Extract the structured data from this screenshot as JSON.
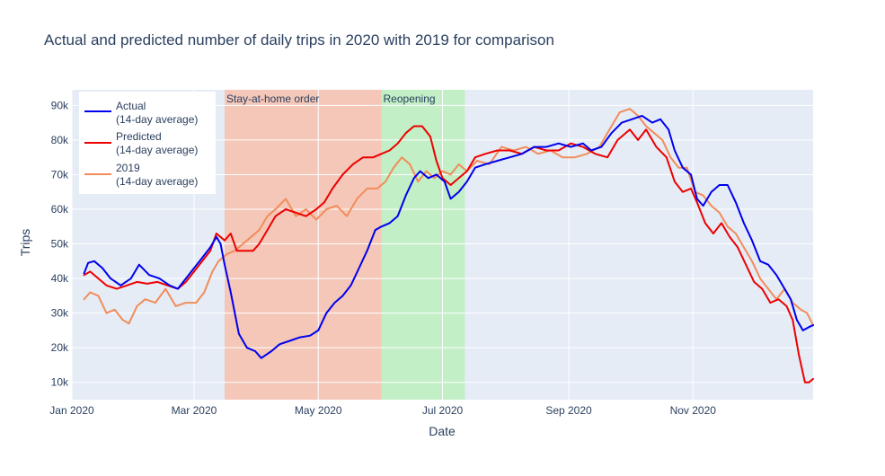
{
  "chart_data": {
    "type": "line",
    "title": "Actual and predicted number of daily trips in 2020 with 2019 for comparison",
    "xlabel": "Date",
    "ylabel": "Trips",
    "x_ticks": [
      "Jan 2020",
      "Mar 2020",
      "May 2020",
      "Jul 2020",
      "Sep 2020",
      "Nov 2020"
    ],
    "x_tick_dates": [
      "2020-01-01",
      "2020-03-01",
      "2020-05-01",
      "2020-07-01",
      "2020-09-01",
      "2020-11-01"
    ],
    "x_range": [
      "2020-01-01",
      "2020-12-30"
    ],
    "y_ticks": [
      10000,
      20000,
      30000,
      40000,
      50000,
      60000,
      70000,
      80000,
      90000
    ],
    "y_tick_labels": [
      "10k",
      "20k",
      "30k",
      "40k",
      "50k",
      "60k",
      "70k",
      "80k",
      "90k"
    ],
    "ylim": [
      5000,
      94500
    ],
    "grid": true,
    "legend_position": "top-left",
    "bands": [
      {
        "label": "Stay-at-home order",
        "start": "2020-03-16",
        "end": "2020-06-01",
        "color": "#f4c7b8"
      },
      {
        "label": "Reopening",
        "start": "2020-06-01",
        "end": "2020-07-12",
        "color": "#c2efc6"
      }
    ],
    "series": [
      {
        "name": "Actual",
        "name_line2": "(14-day average)",
        "color": "#0000ee",
        "points": [
          [
            "2020-01-07",
            41500
          ],
          [
            "2020-01-09",
            44500
          ],
          [
            "2020-01-12",
            45000
          ],
          [
            "2020-01-16",
            43000
          ],
          [
            "2020-01-20",
            40000
          ],
          [
            "2020-01-25",
            38000
          ],
          [
            "2020-01-30",
            40000
          ],
          [
            "2020-02-03",
            44000
          ],
          [
            "2020-02-08",
            41000
          ],
          [
            "2020-02-13",
            40000
          ],
          [
            "2020-02-18",
            38000
          ],
          [
            "2020-02-22",
            37000
          ],
          [
            "2020-02-26",
            40000
          ],
          [
            "2020-03-01",
            43000
          ],
          [
            "2020-03-05",
            46000
          ],
          [
            "2020-03-09",
            49000
          ],
          [
            "2020-03-12",
            52000
          ],
          [
            "2020-03-14",
            50000
          ],
          [
            "2020-03-16",
            44000
          ],
          [
            "2020-03-19",
            36000
          ],
          [
            "2020-03-23",
            24000
          ],
          [
            "2020-03-27",
            20000
          ],
          [
            "2020-03-31",
            19000
          ],
          [
            "2020-04-03",
            17000
          ],
          [
            "2020-04-08",
            19000
          ],
          [
            "2020-04-12",
            21000
          ],
          [
            "2020-04-17",
            22000
          ],
          [
            "2020-04-22",
            23000
          ],
          [
            "2020-04-27",
            23500
          ],
          [
            "2020-05-01",
            25000
          ],
          [
            "2020-05-05",
            30000
          ],
          [
            "2020-05-09",
            33000
          ],
          [
            "2020-05-13",
            35000
          ],
          [
            "2020-05-17",
            38000
          ],
          [
            "2020-05-21",
            43000
          ],
          [
            "2020-05-25",
            48000
          ],
          [
            "2020-05-29",
            54000
          ],
          [
            "2020-06-01",
            55000
          ],
          [
            "2020-06-05",
            56000
          ],
          [
            "2020-06-09",
            58000
          ],
          [
            "2020-06-13",
            64000
          ],
          [
            "2020-06-17",
            69000
          ],
          [
            "2020-06-20",
            71000
          ],
          [
            "2020-06-24",
            69000
          ],
          [
            "2020-06-28",
            70000
          ],
          [
            "2020-07-02",
            68000
          ],
          [
            "2020-07-05",
            63000
          ],
          [
            "2020-07-09",
            65000
          ],
          [
            "2020-07-13",
            68000
          ],
          [
            "2020-07-17",
            72000
          ],
          [
            "2020-07-22",
            73000
          ],
          [
            "2020-07-28",
            74000
          ],
          [
            "2020-08-03",
            75000
          ],
          [
            "2020-08-09",
            76000
          ],
          [
            "2020-08-15",
            78000
          ],
          [
            "2020-08-21",
            78000
          ],
          [
            "2020-08-27",
            79000
          ],
          [
            "2020-09-02",
            78000
          ],
          [
            "2020-09-08",
            79000
          ],
          [
            "2020-09-12",
            77000
          ],
          [
            "2020-09-17",
            78000
          ],
          [
            "2020-09-22",
            82000
          ],
          [
            "2020-09-27",
            85000
          ],
          [
            "2020-10-02",
            86000
          ],
          [
            "2020-10-07",
            87000
          ],
          [
            "2020-10-12",
            85000
          ],
          [
            "2020-10-16",
            86000
          ],
          [
            "2020-10-20",
            83000
          ],
          [
            "2020-10-23",
            77000
          ],
          [
            "2020-10-27",
            72000
          ],
          [
            "2020-10-31",
            70000
          ],
          [
            "2020-11-03",
            63000
          ],
          [
            "2020-11-06",
            61000
          ],
          [
            "2020-11-10",
            65000
          ],
          [
            "2020-11-14",
            67000
          ],
          [
            "2020-11-18",
            67000
          ],
          [
            "2020-11-22",
            62000
          ],
          [
            "2020-11-26",
            56000
          ],
          [
            "2020-11-30",
            51000
          ],
          [
            "2020-12-04",
            45000
          ],
          [
            "2020-12-08",
            44000
          ],
          [
            "2020-12-12",
            41000
          ],
          [
            "2020-12-16",
            37000
          ],
          [
            "2020-12-19",
            34000
          ],
          [
            "2020-12-22",
            28000
          ],
          [
            "2020-12-25",
            25000
          ],
          [
            "2020-12-28",
            26000
          ],
          [
            "2020-12-30",
            26500
          ]
        ]
      },
      {
        "name": "Predicted",
        "name_line2": "(14-day average)",
        "color": "#ee0000",
        "points": [
          [
            "2020-01-07",
            41000
          ],
          [
            "2020-01-10",
            42000
          ],
          [
            "2020-01-14",
            40000
          ],
          [
            "2020-01-18",
            38000
          ],
          [
            "2020-01-23",
            37000
          ],
          [
            "2020-01-28",
            38000
          ],
          [
            "2020-02-02",
            39000
          ],
          [
            "2020-02-07",
            38500
          ],
          [
            "2020-02-12",
            39000
          ],
          [
            "2020-02-17",
            38000
          ],
          [
            "2020-02-22",
            37000
          ],
          [
            "2020-02-26",
            39000
          ],
          [
            "2020-03-01",
            42000
          ],
          [
            "2020-03-05",
            45000
          ],
          [
            "2020-03-09",
            48000
          ],
          [
            "2020-03-12",
            53000
          ],
          [
            "2020-03-16",
            51000
          ],
          [
            "2020-03-19",
            53000
          ],
          [
            "2020-03-22",
            48000
          ],
          [
            "2020-03-26",
            48000
          ],
          [
            "2020-03-30",
            48000
          ],
          [
            "2020-04-02",
            50000
          ],
          [
            "2020-04-06",
            54000
          ],
          [
            "2020-04-10",
            58000
          ],
          [
            "2020-04-15",
            60000
          ],
          [
            "2020-04-20",
            59000
          ],
          [
            "2020-04-25",
            58000
          ],
          [
            "2020-04-30",
            60000
          ],
          [
            "2020-05-04",
            62000
          ],
          [
            "2020-05-08",
            66000
          ],
          [
            "2020-05-13",
            70000
          ],
          [
            "2020-05-18",
            73000
          ],
          [
            "2020-05-23",
            75000
          ],
          [
            "2020-05-28",
            75000
          ],
          [
            "2020-06-01",
            76000
          ],
          [
            "2020-06-05",
            77000
          ],
          [
            "2020-06-09",
            79000
          ],
          [
            "2020-06-13",
            82000
          ],
          [
            "2020-06-17",
            84000
          ],
          [
            "2020-06-21",
            84000
          ],
          [
            "2020-06-25",
            81000
          ],
          [
            "2020-06-28",
            74000
          ],
          [
            "2020-07-01",
            69000
          ],
          [
            "2020-07-05",
            67000
          ],
          [
            "2020-07-09",
            69000
          ],
          [
            "2020-07-13",
            71000
          ],
          [
            "2020-07-17",
            75000
          ],
          [
            "2020-07-22",
            76000
          ],
          [
            "2020-07-28",
            77000
          ],
          [
            "2020-08-03",
            77000
          ],
          [
            "2020-08-09",
            76000
          ],
          [
            "2020-08-15",
            78000
          ],
          [
            "2020-08-21",
            77000
          ],
          [
            "2020-08-27",
            77000
          ],
          [
            "2020-09-02",
            79000
          ],
          [
            "2020-09-08",
            78000
          ],
          [
            "2020-09-14",
            76000
          ],
          [
            "2020-09-20",
            75000
          ],
          [
            "2020-09-25",
            80000
          ],
          [
            "2020-10-01",
            83000
          ],
          [
            "2020-10-05",
            80000
          ],
          [
            "2020-10-09",
            83000
          ],
          [
            "2020-10-14",
            78000
          ],
          [
            "2020-10-19",
            75000
          ],
          [
            "2020-10-23",
            68000
          ],
          [
            "2020-10-27",
            65000
          ],
          [
            "2020-10-31",
            66000
          ],
          [
            "2020-11-03",
            62000
          ],
          [
            "2020-11-07",
            56000
          ],
          [
            "2020-11-11",
            53000
          ],
          [
            "2020-11-15",
            56000
          ],
          [
            "2020-11-19",
            52000
          ],
          [
            "2020-11-23",
            49000
          ],
          [
            "2020-11-27",
            44000
          ],
          [
            "2020-12-01",
            39000
          ],
          [
            "2020-12-05",
            37000
          ],
          [
            "2020-12-09",
            33000
          ],
          [
            "2020-12-13",
            34000
          ],
          [
            "2020-12-17",
            32000
          ],
          [
            "2020-12-20",
            28000
          ],
          [
            "2020-12-23",
            18000
          ],
          [
            "2020-12-26",
            10000
          ],
          [
            "2020-12-28",
            10000
          ],
          [
            "2020-12-30",
            11000
          ]
        ]
      },
      {
        "name": "2019",
        "name_line2": "(14-day average)",
        "color": "#f28c5a",
        "points": [
          [
            "2020-01-07",
            34000
          ],
          [
            "2020-01-10",
            36000
          ],
          [
            "2020-01-14",
            35000
          ],
          [
            "2020-01-18",
            30000
          ],
          [
            "2020-01-22",
            31000
          ],
          [
            "2020-01-26",
            28000
          ],
          [
            "2020-01-29",
            27000
          ],
          [
            "2020-02-02",
            32000
          ],
          [
            "2020-02-06",
            34000
          ],
          [
            "2020-02-11",
            33000
          ],
          [
            "2020-02-16",
            37000
          ],
          [
            "2020-02-21",
            32000
          ],
          [
            "2020-02-26",
            33000
          ],
          [
            "2020-03-02",
            33000
          ],
          [
            "2020-03-06",
            36000
          ],
          [
            "2020-03-10",
            42000
          ],
          [
            "2020-03-13",
            45000
          ],
          [
            "2020-03-17",
            47000
          ],
          [
            "2020-03-21",
            48000
          ],
          [
            "2020-03-25",
            50000
          ],
          [
            "2020-03-29",
            52000
          ],
          [
            "2020-04-02",
            54000
          ],
          [
            "2020-04-06",
            58000
          ],
          [
            "2020-04-10",
            60000
          ],
          [
            "2020-04-15",
            63000
          ],
          [
            "2020-04-20",
            58000
          ],
          [
            "2020-04-25",
            60000
          ],
          [
            "2020-04-30",
            57000
          ],
          [
            "2020-05-05",
            60000
          ],
          [
            "2020-05-10",
            61000
          ],
          [
            "2020-05-15",
            58000
          ],
          [
            "2020-05-20",
            63000
          ],
          [
            "2020-05-25",
            66000
          ],
          [
            "2020-05-30",
            66000
          ],
          [
            "2020-06-03",
            68000
          ],
          [
            "2020-06-07",
            72000
          ],
          [
            "2020-06-11",
            75000
          ],
          [
            "2020-06-15",
            73000
          ],
          [
            "2020-06-19",
            68000
          ],
          [
            "2020-06-23",
            71000
          ],
          [
            "2020-06-27",
            69000
          ],
          [
            "2020-07-01",
            71000
          ],
          [
            "2020-07-05",
            70000
          ],
          [
            "2020-07-09",
            73000
          ],
          [
            "2020-07-13",
            71000
          ],
          [
            "2020-07-18",
            74000
          ],
          [
            "2020-07-24",
            73000
          ],
          [
            "2020-07-30",
            78000
          ],
          [
            "2020-08-05",
            77000
          ],
          [
            "2020-08-11",
            78000
          ],
          [
            "2020-08-17",
            76000
          ],
          [
            "2020-08-23",
            77000
          ],
          [
            "2020-08-29",
            75000
          ],
          [
            "2020-09-04",
            75000
          ],
          [
            "2020-09-10",
            76000
          ],
          [
            "2020-09-16",
            78000
          ],
          [
            "2020-09-21",
            83000
          ],
          [
            "2020-09-26",
            88000
          ],
          [
            "2020-10-01",
            89000
          ],
          [
            "2020-10-05",
            87000
          ],
          [
            "2020-10-09",
            84000
          ],
          [
            "2020-10-13",
            82000
          ],
          [
            "2020-10-17",
            80000
          ],
          [
            "2020-10-21",
            75000
          ],
          [
            "2020-10-25",
            72000
          ],
          [
            "2020-10-29",
            72000
          ],
          [
            "2020-11-02",
            65000
          ],
          [
            "2020-11-06",
            64000
          ],
          [
            "2020-11-10",
            61000
          ],
          [
            "2020-11-14",
            59000
          ],
          [
            "2020-11-18",
            55000
          ],
          [
            "2020-11-22",
            53000
          ],
          [
            "2020-11-26",
            49000
          ],
          [
            "2020-11-30",
            45000
          ],
          [
            "2020-12-04",
            40000
          ],
          [
            "2020-12-08",
            37000
          ],
          [
            "2020-12-12",
            34000
          ],
          [
            "2020-12-16",
            37000
          ],
          [
            "2020-12-20",
            33000
          ],
          [
            "2020-12-24",
            31000
          ],
          [
            "2020-12-27",
            30000
          ],
          [
            "2020-12-30",
            26500
          ]
        ]
      }
    ]
  }
}
